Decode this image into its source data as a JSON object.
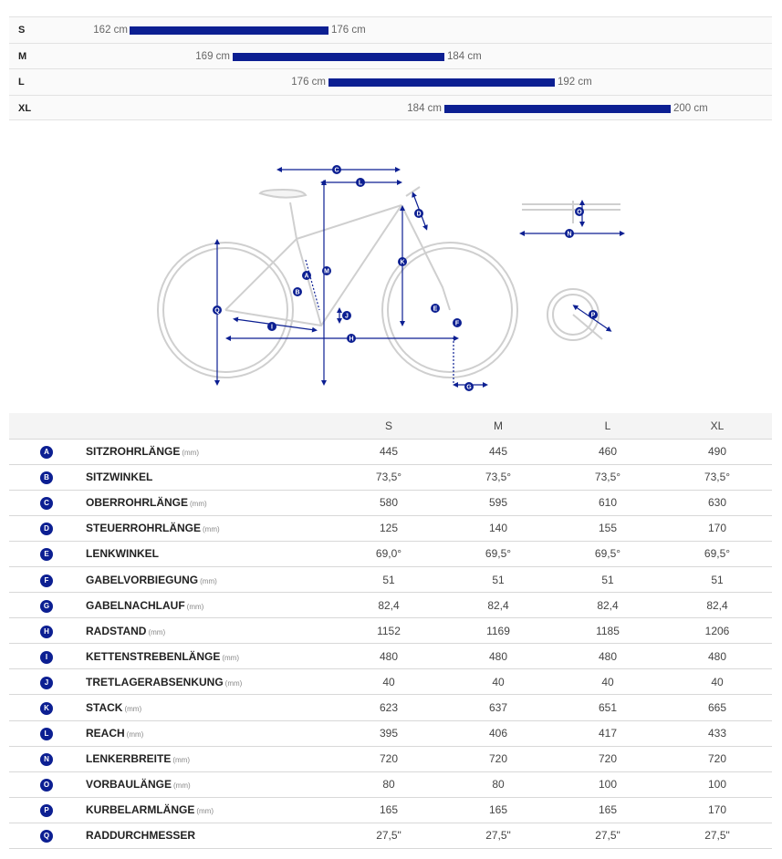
{
  "size_chart": {
    "rows": [
      {
        "size": "S",
        "min": "162 cm",
        "max": "176 cm"
      },
      {
        "size": "M",
        "min": "169 cm",
        "max": "184 cm"
      },
      {
        "size": "L",
        "min": "176 cm",
        "max": "192 cm"
      },
      {
        "size": "XL",
        "min": "184 cm",
        "max": "200 cm"
      }
    ]
  },
  "diagram": {
    "markers": [
      "A",
      "B",
      "C",
      "D",
      "E",
      "F",
      "G",
      "H",
      "I",
      "J",
      "K",
      "L",
      "M",
      "N",
      "O",
      "P",
      "Q"
    ],
    "accent_color": "#0c1f92",
    "line_color": "#c8c8c8"
  },
  "geometry": {
    "headers": [
      "",
      "",
      "S",
      "M",
      "L",
      "XL"
    ],
    "rows": [
      {
        "letter": "A",
        "name": "SITZROHRLÄNGE",
        "unit": "(mm)",
        "values": [
          "445",
          "445",
          "460",
          "490"
        ]
      },
      {
        "letter": "B",
        "name": "SITZWINKEL",
        "unit": "",
        "values": [
          "73,5°",
          "73,5°",
          "73,5°",
          "73,5°"
        ]
      },
      {
        "letter": "C",
        "name": "OBERROHRLÄNGE",
        "unit": "(mm)",
        "values": [
          "580",
          "595",
          "610",
          "630"
        ]
      },
      {
        "letter": "D",
        "name": "STEUERROHRLÄNGE",
        "unit": "(mm)",
        "values": [
          "125",
          "140",
          "155",
          "170"
        ]
      },
      {
        "letter": "E",
        "name": "LENKWINKEL",
        "unit": "",
        "values": [
          "69,0°",
          "69,5°",
          "69,5°",
          "69,5°"
        ]
      },
      {
        "letter": "F",
        "name": "GABELVORBIEGUNG",
        "unit": "(mm)",
        "values": [
          "51",
          "51",
          "51",
          "51"
        ]
      },
      {
        "letter": "G",
        "name": "GABELNACHLAUF",
        "unit": "(mm)",
        "values": [
          "82,4",
          "82,4",
          "82,4",
          "82,4"
        ]
      },
      {
        "letter": "H",
        "name": "RADSTAND",
        "unit": "(mm)",
        "values": [
          "1152",
          "1169",
          "1185",
          "1206"
        ]
      },
      {
        "letter": "I",
        "name": "KETTENSTREBENLÄNGE",
        "unit": "(mm)",
        "values": [
          "480",
          "480",
          "480",
          "480"
        ]
      },
      {
        "letter": "J",
        "name": "TRETLAGERABSENKUNG",
        "unit": "(mm)",
        "values": [
          "40",
          "40",
          "40",
          "40"
        ]
      },
      {
        "letter": "K",
        "name": "STACK",
        "unit": "(mm)",
        "values": [
          "623",
          "637",
          "651",
          "665"
        ]
      },
      {
        "letter": "L",
        "name": "REACH",
        "unit": "(mm)",
        "values": [
          "395",
          "406",
          "417",
          "433"
        ]
      },
      {
        "letter": "N",
        "name": "LENKERBREITE",
        "unit": "(mm)",
        "values": [
          "720",
          "720",
          "720",
          "720"
        ]
      },
      {
        "letter": "O",
        "name": "VORBAULÄNGE",
        "unit": "(mm)",
        "values": [
          "80",
          "80",
          "100",
          "100"
        ]
      },
      {
        "letter": "P",
        "name": "KURBELARMLÄNGE",
        "unit": "(mm)",
        "values": [
          "165",
          "165",
          "165",
          "170"
        ]
      },
      {
        "letter": "Q",
        "name": "RADDURCHMESSER",
        "unit": "",
        "values": [
          "27,5\"",
          "27,5\"",
          "27,5\"",
          "27,5\""
        ]
      }
    ]
  }
}
